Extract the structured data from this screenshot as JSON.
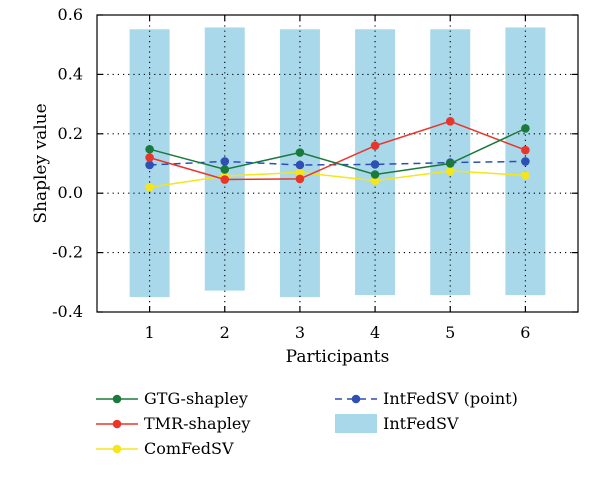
{
  "chart_data": {
    "type": "line",
    "title": "",
    "xlabel": "Participants",
    "ylabel": "Shapley value",
    "x": [
      1,
      2,
      3,
      4,
      5,
      6
    ],
    "xlim": [
      0.3,
      6.7
    ],
    "ylim": [
      -0.4,
      0.6
    ],
    "xticks": [
      "1",
      "2",
      "3",
      "4",
      "5",
      "6"
    ],
    "yticks": [
      "0.6",
      "0.4",
      "0.2",
      "0.0",
      "-0.2",
      "-0.4"
    ],
    "grid": true,
    "grid_style": "dotted",
    "legend_position": "bottom",
    "series": [
      {
        "name": "GTG-shapley",
        "kind": "line",
        "color": "#1a7a3c",
        "values": [
          0.148,
          0.08,
          0.137,
          0.063,
          0.1,
          0.218
        ]
      },
      {
        "name": "TMR-shapley",
        "kind": "line",
        "color": "#e8362a",
        "values": [
          0.12,
          0.046,
          0.048,
          0.16,
          0.242,
          0.145
        ]
      },
      {
        "name": "ComFedSV",
        "kind": "line",
        "color": "#f5e51b",
        "values": [
          0.02,
          0.058,
          0.07,
          0.042,
          0.075,
          0.06
        ]
      },
      {
        "name": "IntFedSV (point)",
        "kind": "dashed-line",
        "color": "#2e4fb4",
        "values": [
          0.095,
          0.107,
          0.095,
          0.097,
          0.103,
          0.107
        ]
      },
      {
        "name": "IntFedSV",
        "kind": "interval-bar",
        "color": "#a9d8ea",
        "lower": [
          -0.35,
          -0.328,
          -0.35,
          -0.343,
          -0.343,
          -0.343
        ],
        "upper": [
          0.552,
          0.558,
          0.552,
          0.552,
          0.552,
          0.558
        ]
      }
    ]
  }
}
